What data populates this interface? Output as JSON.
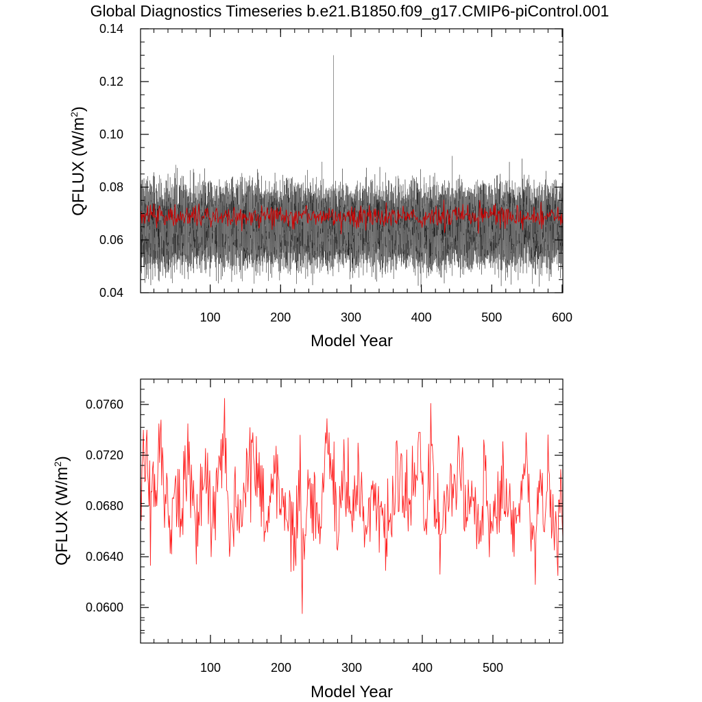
{
  "title": "Global Diagnostics Timeseries b.e21.B1850.f09_g17.CMIP6-piControl.001",
  "colors": {
    "monthly": "#000000",
    "annual": "#d40000",
    "annual_bottom": "#ff2020",
    "axis": "#000000"
  },
  "chart_data": [
    {
      "type": "line",
      "name": "top-panel",
      "xlabel": "Model Year",
      "ylabel": "QFLUX (W/m",
      "ylabel_sup": "2",
      "ylabel_tail": ")",
      "xlim": [
        1,
        601
      ],
      "ylim": [
        0.04,
        0.14
      ],
      "xticks": [
        100,
        200,
        300,
        400,
        500,
        600
      ],
      "xtick_labels": [
        "100",
        "200",
        "300",
        "400",
        "500",
        "600"
      ],
      "yticks": [
        0.04,
        0.06,
        0.08,
        0.1,
        0.12,
        0.14
      ],
      "ytick_labels": [
        "0.04",
        "0.06",
        "0.08",
        "0.10",
        "0.12",
        "0.14"
      ],
      "series": [
        {
          "kind": "monthly",
          "color": "#000000",
          "summary": {
            "mean": 0.069,
            "min": 0.042,
            "max": 0.13,
            "max_year": 275
          }
        },
        {
          "kind": "annual",
          "color": "#d40000",
          "summary": {
            "mean": 0.069,
            "min": 0.0595,
            "max": 0.0765
          }
        }
      ]
    },
    {
      "type": "line",
      "name": "bottom-panel",
      "xlabel": "Model Year",
      "ylabel": "QFLUX (W/m",
      "ylabel_sup": "2",
      "ylabel_tail": ")",
      "xlim": [
        1,
        599
      ],
      "ylim": [
        0.0572,
        0.078
      ],
      "xticks": [
        100,
        200,
        300,
        400,
        500
      ],
      "xtick_labels": [
        "100",
        "200",
        "300",
        "400",
        "500"
      ],
      "yticks": [
        0.06,
        0.064,
        0.068,
        0.072,
        0.076
      ],
      "ytick_labels": [
        "0.0600",
        "0.0640",
        "0.0680",
        "0.0720",
        "0.0760"
      ],
      "series": [
        {
          "kind": "annual",
          "color": "#ff2020",
          "anchors": [
            [
              1,
              0.07
            ],
            [
              5,
              0.074
            ],
            [
              8,
              0.07
            ],
            [
              10,
              0.074
            ],
            [
              13,
              0.068
            ],
            [
              15,
              0.0633
            ],
            [
              19,
              0.0715
            ],
            [
              24,
              0.068
            ],
            [
              27,
              0.0745
            ],
            [
              30,
              0.0748
            ],
            [
              33,
              0.0715
            ],
            [
              40,
              0.0675
            ],
            [
              45,
              0.0642
            ],
            [
              50,
              0.07
            ],
            [
              58,
              0.067
            ],
            [
              68,
              0.0745
            ],
            [
              75,
              0.068
            ],
            [
              80,
              0.0634
            ],
            [
              85,
              0.0685
            ],
            [
              96,
              0.0722
            ],
            [
              102,
              0.0662
            ],
            [
              111,
              0.0705
            ],
            [
              120,
              0.0765
            ],
            [
              127,
              0.064
            ],
            [
              134,
              0.07
            ],
            [
              140,
              0.0665
            ],
            [
              156,
              0.0742
            ],
            [
              165,
              0.0735
            ],
            [
              177,
              0.066
            ],
            [
              190,
              0.072
            ],
            [
              210,
              0.066
            ],
            [
              220,
              0.0643
            ],
            [
              227,
              0.0736
            ],
            [
              230,
              0.0595
            ],
            [
              240,
              0.07
            ],
            [
              255,
              0.065
            ],
            [
              265,
              0.0749
            ],
            [
              272,
              0.07
            ],
            [
              280,
              0.0645
            ],
            [
              290,
              0.0705
            ],
            [
              300,
              0.0668
            ],
            [
              310,
              0.0715
            ],
            [
              320,
              0.0665
            ],
            [
              330,
              0.07
            ],
            [
              340,
              0.068
            ],
            [
              350,
              0.064
            ],
            [
              365,
              0.072
            ],
            [
              380,
              0.066
            ],
            [
              395,
              0.0738
            ],
            [
              405,
              0.067
            ],
            [
              412,
              0.0761
            ],
            [
              420,
              0.067
            ],
            [
              425,
              0.0626
            ],
            [
              432,
              0.068
            ],
            [
              445,
              0.0705
            ],
            [
              452,
              0.0733
            ],
            [
              460,
              0.066
            ],
            [
              470,
              0.07
            ],
            [
              480,
              0.065
            ],
            [
              490,
              0.072
            ],
            [
              500,
              0.066
            ],
            [
              510,
              0.07
            ],
            [
              520,
              0.068
            ],
            [
              530,
              0.064
            ],
            [
              540,
              0.07
            ],
            [
              548,
              0.0722
            ],
            [
              552,
              0.068
            ],
            [
              560,
              0.0618
            ],
            [
              565,
              0.07
            ],
            [
              572,
              0.066
            ],
            [
              580,
              0.0705
            ],
            [
              588,
              0.0665
            ],
            [
              592,
              0.0625
            ],
            [
              596,
              0.0709
            ],
            [
              599,
              0.0655
            ]
          ],
          "summary": {
            "mean": 0.0685,
            "min": 0.0595,
            "min_year": 230,
            "max": 0.0765,
            "max_year": 120
          }
        }
      ]
    }
  ]
}
